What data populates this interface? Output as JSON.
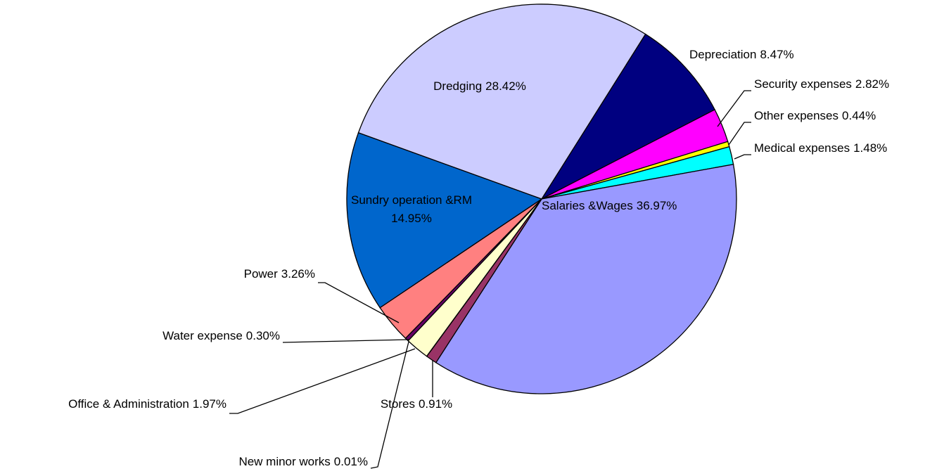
{
  "chart_data": {
    "type": "pie",
    "categories": [
      "Depreciation",
      "Security expenses",
      "Other expenses",
      "Medical expenses",
      "Salaries &Wages",
      "Stores",
      "New minor works",
      "Office & Administration",
      "Water expense",
      "Power",
      "Sundry operation &RM",
      "Dredging"
    ],
    "values": [
      8.47,
      2.82,
      0.44,
      1.48,
      36.97,
      0.91,
      0.01,
      1.97,
      0.3,
      3.26,
      14.95,
      28.42
    ],
    "value_labels": [
      "8.47%",
      "2.82%",
      "0.44%",
      "1.48%",
      "36.97%",
      "0.91%",
      "0.01%",
      "1.97%",
      "0.30%",
      "3.26%",
      "14.95%",
      "28.42%"
    ],
    "colors": [
      "#000080",
      "#ff00ff",
      "#ffff00",
      "#00ffff",
      "#9999ff",
      "#993366",
      "#800080",
      "#ffffcc",
      "#660066",
      "#ff8080",
      "#0066cc",
      "#ccccff"
    ]
  }
}
